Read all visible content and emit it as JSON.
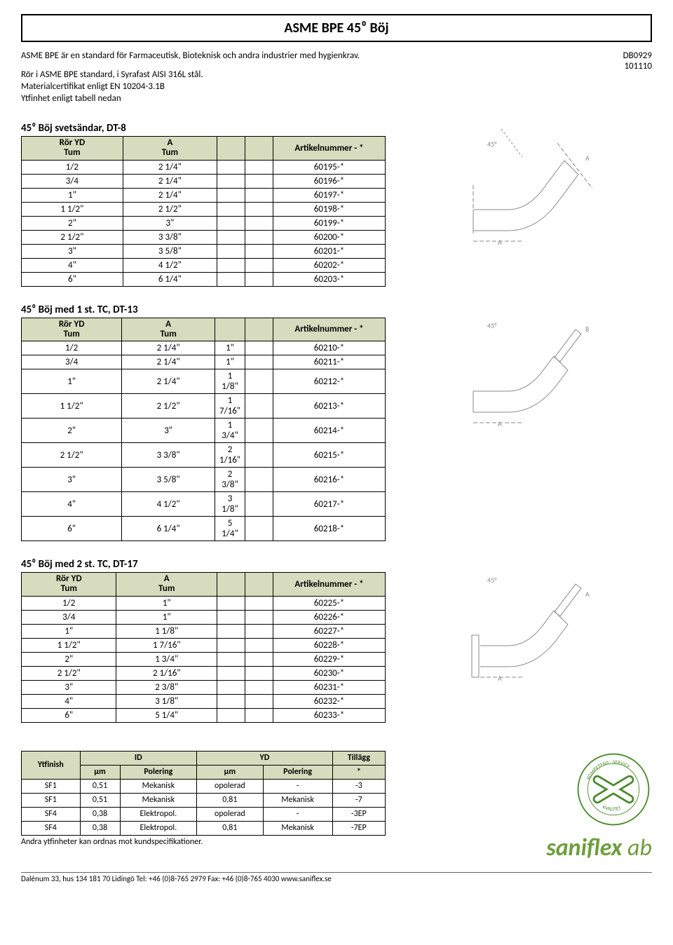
{
  "title": "ASME BPE  45⁰ Böj",
  "intro": {
    "line1": "ASME BPE är en standard för Farmaceutisk, Bioteknisk och andra industrier med hygienkrav.",
    "line2": "Rör i ASME BPE standard, i Syrafast AISI 316L stål.",
    "line3": "Materialcertifikat enligt EN 10204-3.1B",
    "line4": "Ytfinhet enligt tabell nedan"
  },
  "docno": "DB0929",
  "date": "101110",
  "table1": {
    "title": "45⁰ Böj svetsändar, DT-8",
    "headers": {
      "h1a": "Rör YD",
      "h1b": "Tum",
      "h2a": "A",
      "h2b": "Tum",
      "h3": "Artikelnummer - *"
    },
    "rows": [
      [
        "1/2",
        "2 1/4\"",
        "",
        "",
        "60195-*"
      ],
      [
        "3/4",
        "2 1/4\"",
        "",
        "",
        "60196-*"
      ],
      [
        "1\"",
        "2 1/4\"",
        "",
        "",
        "60197-*"
      ],
      [
        "1 1/2\"",
        "2 1/2\"",
        "",
        "",
        "60198-*"
      ],
      [
        "2\"",
        "3\"",
        "",
        "",
        "60199-*"
      ],
      [
        "2 1/2\"",
        "3 3/8\"",
        "",
        "",
        "60200-*"
      ],
      [
        "3\"",
        "3 5/8\"",
        "",
        "",
        "60201-*"
      ],
      [
        "4\"",
        "4 1/2\"",
        "",
        "",
        "60202-*"
      ],
      [
        "6\"",
        "6 1/4\"",
        "",
        "",
        "60203-*"
      ]
    ]
  },
  "table2": {
    "title": "45⁰ Böj med 1 st. TC, DT-13",
    "headers": {
      "h1a": "Rör YD",
      "h1b": "Tum",
      "h2a": "A",
      "h2b": "Tum",
      "h3": "Artikelnummer - *"
    },
    "rows": [
      [
        "1/2",
        "2 1/4\"",
        "1\"",
        "",
        "60210-*"
      ],
      [
        "3/4",
        "2 1/4\"",
        "1\"",
        "",
        "60211-*"
      ],
      [
        "1\"",
        "2 1/4\"",
        "1 1/8\"",
        "",
        "60212-*"
      ],
      [
        "1 1/2\"",
        "2 1/2\"",
        "1 7/16\"",
        "",
        "60213-*"
      ],
      [
        "2\"",
        "3\"",
        "1 3/4\"",
        "",
        "60214-*"
      ],
      [
        "2 1/2\"",
        "3 3/8\"",
        "2 1/16\"",
        "",
        "60215-*"
      ],
      [
        "3\"",
        "3 5/8\"",
        "2 3/8\"",
        "",
        "60216-*"
      ],
      [
        "4\"",
        "4 1/2\"",
        "3 1/8\"",
        "",
        "60217-*"
      ],
      [
        "6\"",
        "6 1/4\"",
        "5 1/4\"",
        "",
        "60218-*"
      ]
    ]
  },
  "table3": {
    "title": "45⁰ Böj med 2 st. TC, DT-17",
    "headers": {
      "h1a": "Rör YD",
      "h1b": "Tum",
      "h2a": "A",
      "h2b": "Tum",
      "h3": "Artikelnummer - *"
    },
    "rows": [
      [
        "1/2",
        "1\"",
        "",
        "",
        "60225-*"
      ],
      [
        "3/4",
        "1\"",
        "",
        "",
        "60226-*"
      ],
      [
        "1\"",
        "1 1/8\"",
        "",
        "",
        "60227-*"
      ],
      [
        "1 1/2\"",
        "1 7/16\"",
        "",
        "",
        "60228-*"
      ],
      [
        "2\"",
        "1 3/4\"",
        "",
        "",
        "60229-*"
      ],
      [
        "2 1/2\"",
        "2 1/16\"",
        "",
        "",
        "60230-*"
      ],
      [
        "3\"",
        "2 3/8\"",
        "",
        "",
        "60231-*"
      ],
      [
        "4\"",
        "3 1/8\"",
        "",
        "",
        "60232-*"
      ],
      [
        "6\"",
        "5 1/4\"",
        "",
        "",
        "60233-*"
      ]
    ]
  },
  "finish": {
    "headers": {
      "h1": "Ytfinish",
      "h2": "ID",
      "h3": "YD",
      "h4": "Tillägg",
      "sub_um": "µm",
      "sub_pol": "Polering",
      "sub_star": "*"
    },
    "rows": [
      [
        "SF1",
        "0,51",
        "Mekanisk",
        "opolerad",
        "-",
        "-3"
      ],
      [
        "SF1",
        "0,51",
        "Mekanisk",
        "0,81",
        "Mekanisk",
        "-7"
      ],
      [
        "SF4",
        "0,38",
        "Elektropol.",
        "opolerad",
        "-",
        "-3EP"
      ],
      [
        "SF4",
        "0,38",
        "Elektropol.",
        "0,81",
        "Mekanisk",
        "-7EP"
      ]
    ],
    "note": "Andra ytfinheter kan ordnas mot kundspecifikationer."
  },
  "logo": {
    "brand": "saniflex",
    "suffix": " ab",
    "badge_top": "KOMPETENS · SERVICE",
    "badge_bottom": "KVALITET"
  },
  "footer": "Dalénum 33, hus 134  181 70 Lidingö  Tel:  +46 (0)8-765 2979 Fax: +46 (0)8-765 4030  www.saniflex.se",
  "diagram_labels": {
    "angle": "45°",
    "A": "A",
    "B": "B"
  },
  "colors": {
    "header_bg": "#d6dcbd",
    "brand": "#6e9e3e",
    "badge_x": "#4a8a2b"
  }
}
